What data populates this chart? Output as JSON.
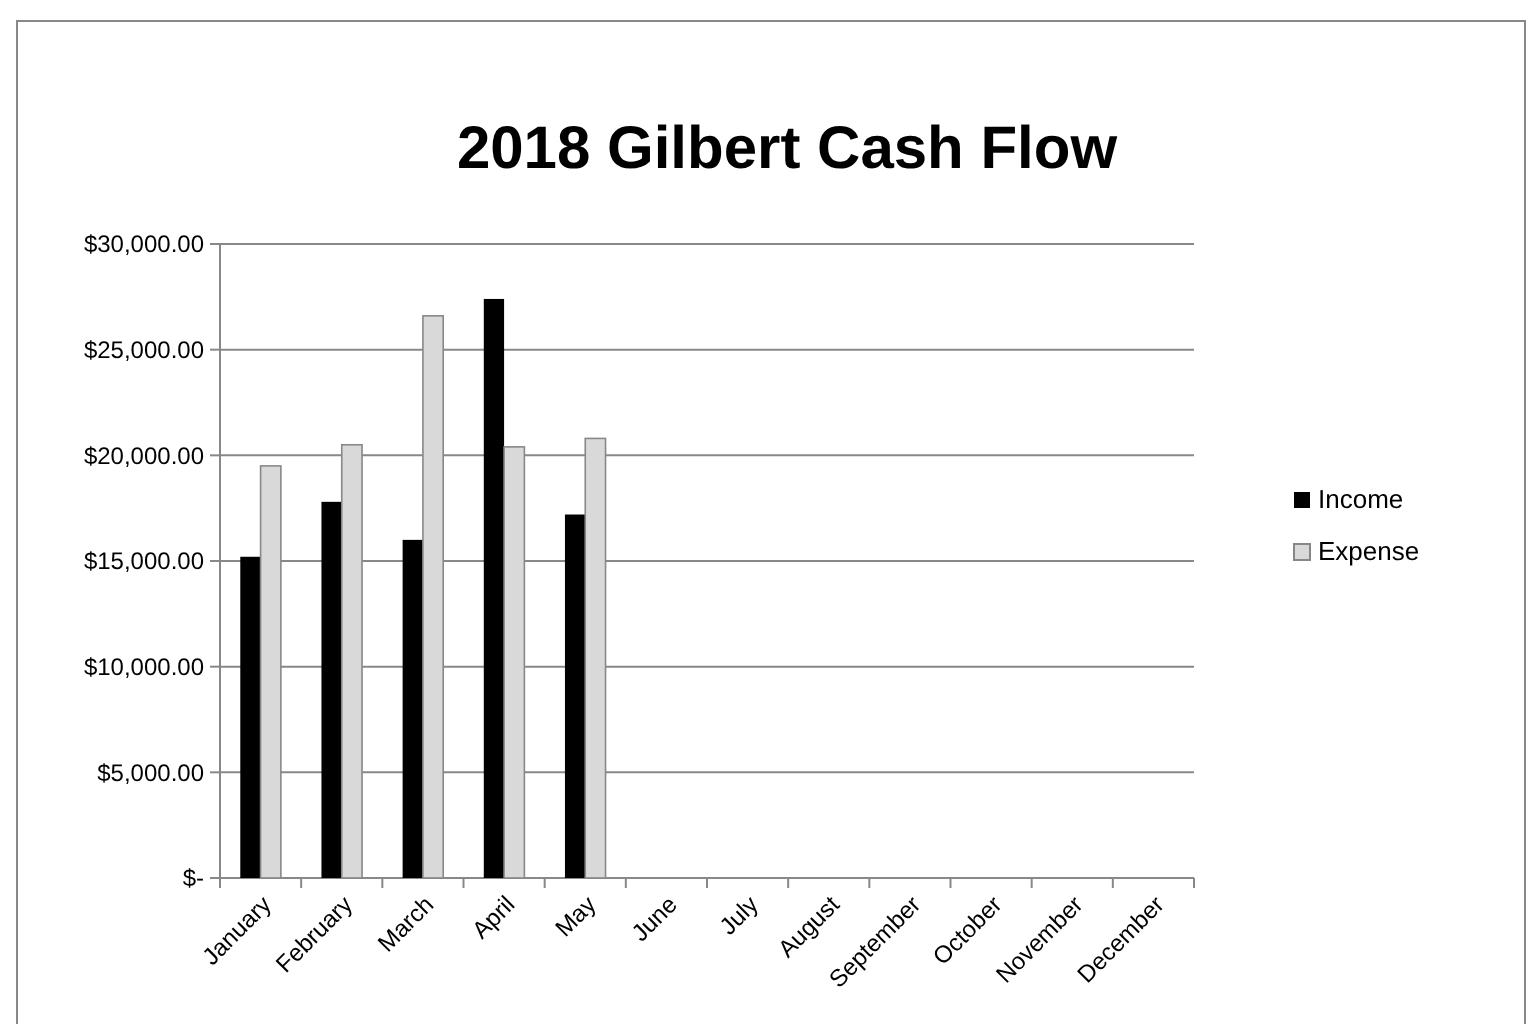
{
  "chart_data": {
    "type": "bar",
    "title": "2018 Gilbert Cash Flow",
    "categories": [
      "January",
      "February",
      "March",
      "April",
      "May",
      "June",
      "July",
      "August",
      "September",
      "October",
      "November",
      "December"
    ],
    "series": [
      {
        "name": "Income",
        "color": "#000000",
        "values": [
          15200,
          17800,
          16000,
          27400,
          17200,
          null,
          null,
          null,
          null,
          null,
          null,
          null
        ]
      },
      {
        "name": "Expense",
        "color": "#d9d9d9",
        "values": [
          19500,
          20500,
          26600,
          20400,
          20800,
          null,
          null,
          null,
          null,
          null,
          null,
          null
        ]
      }
    ],
    "ylim": [
      0,
      30000
    ],
    "yticks": [
      {
        "value": 0,
        "label": "$-"
      },
      {
        "value": 5000,
        "label": "$5,000.00"
      },
      {
        "value": 10000,
        "label": "$10,000.00"
      },
      {
        "value": 15000,
        "label": "$15,000.00"
      },
      {
        "value": 20000,
        "label": "$20,000.00"
      },
      {
        "value": 25000,
        "label": "$25,000.00"
      },
      {
        "value": 30000,
        "label": "$30,000.00"
      }
    ],
    "grid": "y",
    "legend": "right"
  }
}
